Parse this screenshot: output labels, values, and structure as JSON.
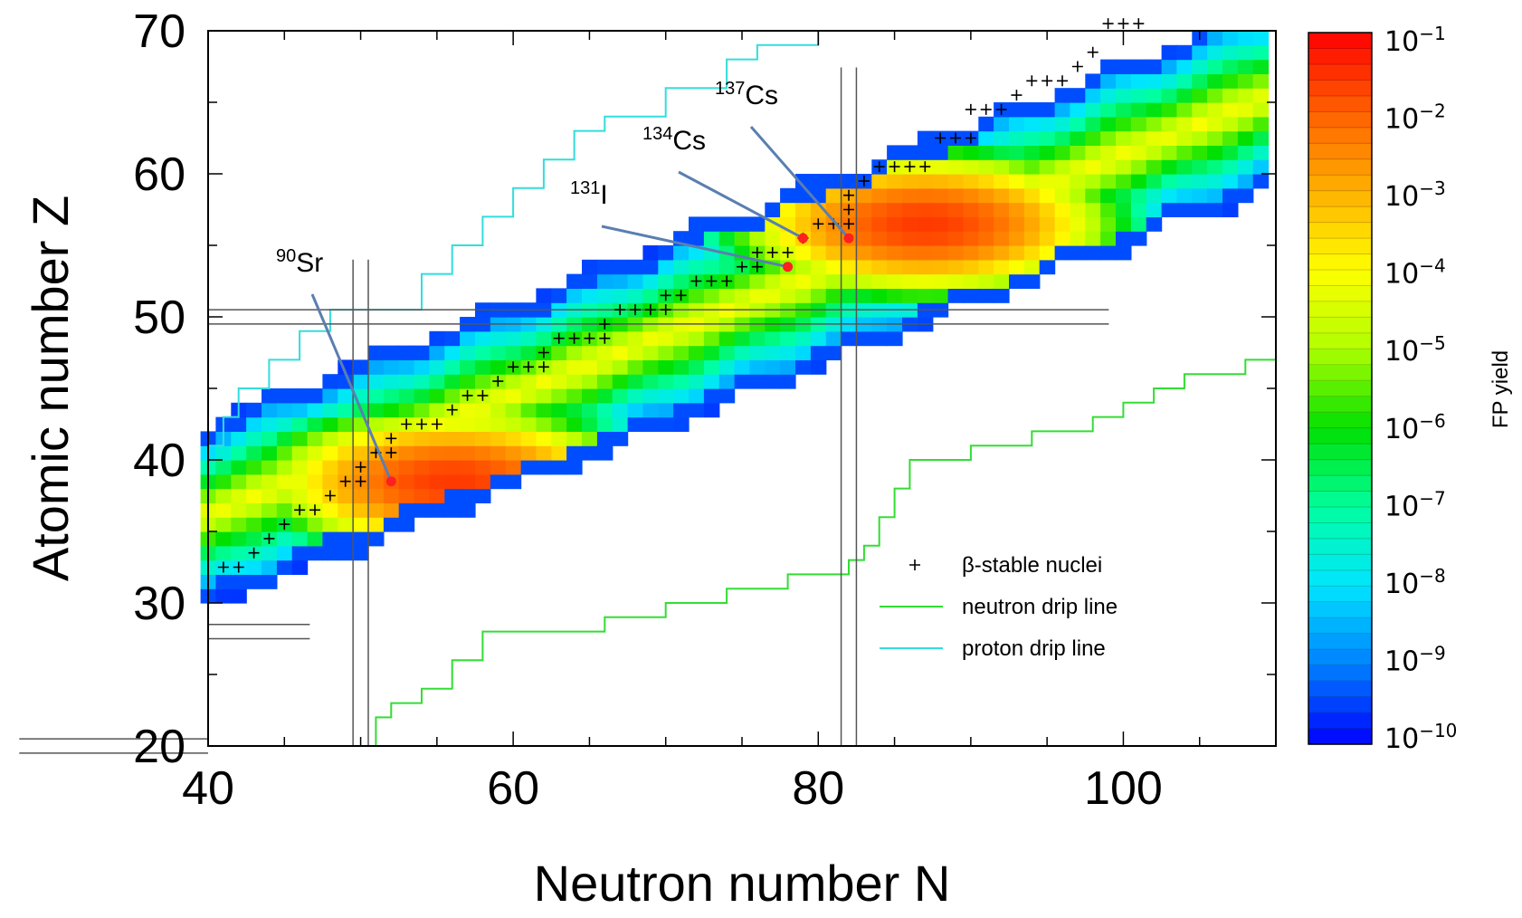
{
  "chart_data": {
    "type": "heatmap",
    "title": "",
    "xlabel": "Neutron number N",
    "ylabel": "Atomic number Z",
    "xlim": [
      40,
      110
    ],
    "ylim": [
      20,
      70
    ],
    "x_ticks": [
      "40",
      "60",
      "80",
      "100"
    ],
    "y_ticks": [
      "20",
      "30",
      "40",
      "50",
      "60",
      "70"
    ],
    "colorbar": {
      "label": "FP yield",
      "scale": "log",
      "range": [
        1e-10,
        0.1
      ],
      "ticks": [
        {
          "base": "10",
          "exp": "−1"
        },
        {
          "base": "10",
          "exp": "−2"
        },
        {
          "base": "10",
          "exp": "−3"
        },
        {
          "base": "10",
          "exp": "−4"
        },
        {
          "base": "10",
          "exp": "−5"
        },
        {
          "base": "10",
          "exp": "−6"
        },
        {
          "base": "10",
          "exp": "−7"
        },
        {
          "base": "10",
          "exp": "−8"
        },
        {
          "base": "10",
          "exp": "−9"
        },
        {
          "base": "10",
          "exp": "−10"
        }
      ],
      "colors": [
        "#0000ff",
        "#0080ff",
        "#00e5ff",
        "#00ffa0",
        "#00e000",
        "#b0ff00",
        "#ffff00",
        "#ffb000",
        "#ff6000",
        "#ff0000"
      ]
    },
    "yield_band": {
      "center_slope": 0.42,
      "center_intercept": 18.9,
      "n_min": 40,
      "n_max": 109,
      "half_width": 6.5
    },
    "peaks": [
      {
        "n": 56,
        "z": 38,
        "log_yield": -1.6
      },
      {
        "n": 87,
        "z": 56,
        "log_yield": -1.6
      }
    ],
    "magic_numbers": {
      "n_lines": [
        50,
        82
      ],
      "z_lines": [
        20,
        28,
        50
      ]
    },
    "annotations": [
      {
        "mass": "90",
        "symbol": "Sr",
        "n": 52,
        "z": 38
      },
      {
        "mass": "131",
        "symbol": "I",
        "n": 78,
        "z": 53
      },
      {
        "mass": "134",
        "symbol": "Cs",
        "n": 79,
        "z": 55
      },
      {
        "mass": "137",
        "symbol": "Cs",
        "n": 82,
        "z": 55
      }
    ],
    "legend": {
      "placement": "bottom-right",
      "entries": [
        {
          "label": "β-stable nuclei",
          "marker": "plus",
          "color": "#000000"
        },
        {
          "label": "neutron drip line",
          "marker": "line",
          "color": "#33dd33"
        },
        {
          "label": "proton drip line",
          "marker": "line",
          "color": "#33dddd"
        }
      ]
    },
    "neutron_drip_line": [
      [
        50,
        20
      ],
      [
        51,
        22
      ],
      [
        52,
        23
      ],
      [
        54,
        24
      ],
      [
        56,
        26
      ],
      [
        58,
        28
      ],
      [
        62,
        28
      ],
      [
        66,
        29
      ],
      [
        70,
        30
      ],
      [
        74,
        31
      ],
      [
        78,
        32
      ],
      [
        82,
        33
      ],
      [
        83,
        34
      ],
      [
        84,
        36
      ],
      [
        85,
        38
      ],
      [
        86,
        40
      ],
      [
        90,
        41
      ],
      [
        94,
        42
      ],
      [
        98,
        43
      ],
      [
        100,
        44
      ],
      [
        102,
        45
      ],
      [
        104,
        46
      ],
      [
        108,
        47
      ],
      [
        110,
        47.5
      ]
    ],
    "proton_drip_line": [
      [
        40,
        41
      ],
      [
        41,
        43
      ],
      [
        42,
        45
      ],
      [
        44,
        47
      ],
      [
        46,
        49
      ],
      [
        48,
        50.5
      ],
      [
        53,
        50.5
      ],
      [
        54,
        53
      ],
      [
        56,
        55
      ],
      [
        58,
        57
      ],
      [
        60,
        59
      ],
      [
        62,
        61
      ],
      [
        64,
        63
      ],
      [
        66,
        64
      ],
      [
        70,
        66
      ],
      [
        74,
        68
      ],
      [
        76,
        69
      ],
      [
        80,
        70
      ]
    ],
    "stable_nuclei": [
      [
        41,
        32
      ],
      [
        42,
        32
      ],
      [
        43,
        33
      ],
      [
        44,
        34
      ],
      [
        45,
        35
      ],
      [
        46,
        36
      ],
      [
        47,
        36
      ],
      [
        48,
        37
      ],
      [
        49,
        38
      ],
      [
        50,
        38
      ],
      [
        50,
        39
      ],
      [
        51,
        40
      ],
      [
        52,
        40
      ],
      [
        52,
        41
      ],
      [
        53,
        42
      ],
      [
        54,
        42
      ],
      [
        55,
        42
      ],
      [
        56,
        43
      ],
      [
        57,
        44
      ],
      [
        58,
        44
      ],
      [
        59,
        45
      ],
      [
        60,
        46
      ],
      [
        61,
        46
      ],
      [
        62,
        46
      ],
      [
        62,
        47
      ],
      [
        63,
        48
      ],
      [
        64,
        48
      ],
      [
        65,
        48
      ],
      [
        66,
        48
      ],
      [
        66,
        49
      ],
      [
        67,
        50
      ],
      [
        68,
        50
      ],
      [
        69,
        50
      ],
      [
        70,
        50
      ],
      [
        70,
        51
      ],
      [
        71,
        51
      ],
      [
        72,
        52
      ],
      [
        73,
        52
      ],
      [
        74,
        52
      ],
      [
        75,
        53
      ],
      [
        76,
        53
      ],
      [
        76,
        54
      ],
      [
        77,
        54
      ],
      [
        78,
        54
      ],
      [
        79,
        55
      ],
      [
        80,
        56
      ],
      [
        81,
        56
      ],
      [
        82,
        56
      ],
      [
        82,
        57
      ],
      [
        82,
        58
      ],
      [
        83,
        59
      ],
      [
        84,
        60
      ],
      [
        85,
        60
      ],
      [
        86,
        60
      ],
      [
        87,
        60
      ],
      [
        88,
        62
      ],
      [
        89,
        62
      ],
      [
        90,
        62
      ],
      [
        90,
        64
      ],
      [
        91,
        64
      ],
      [
        92,
        64
      ],
      [
        93,
        65
      ],
      [
        94,
        66
      ],
      [
        95,
        66
      ],
      [
        96,
        66
      ],
      [
        97,
        67
      ],
      [
        98,
        68
      ],
      [
        99,
        70
      ],
      [
        100,
        70
      ],
      [
        101,
        70
      ]
    ]
  }
}
